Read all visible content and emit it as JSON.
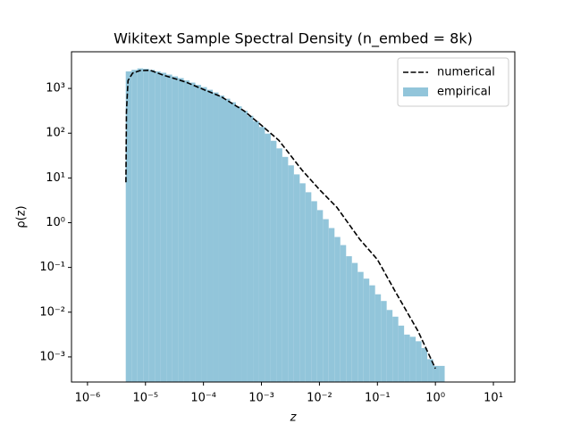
{
  "chart_data": {
    "type": "histogram",
    "title": "Wikitext Sample Spectral Density (n_embed = 8k)",
    "x_label": "z",
    "y_label": "ρ(z)",
    "xscale": "log",
    "yscale": "log",
    "xlim": [
      5.3e-07,
      23.4
    ],
    "ylim": [
      0.000275,
      6600
    ],
    "xticks": [
      {
        "value": 1e-06,
        "label": "10⁻⁶"
      },
      {
        "value": 1e-05,
        "label": "10⁻⁵"
      },
      {
        "value": 0.0001,
        "label": "10⁻⁴"
      },
      {
        "value": 0.001,
        "label": "10⁻³"
      },
      {
        "value": 0.01,
        "label": "10⁻²"
      },
      {
        "value": 0.1,
        "label": "10⁻¹"
      },
      {
        "value": 1,
        "label": "10⁰"
      },
      {
        "value": 10,
        "label": "10¹"
      }
    ],
    "yticks": [
      {
        "value": 0.001,
        "label": "10⁻³"
      },
      {
        "value": 0.01,
        "label": "10⁻²"
      },
      {
        "value": 0.1,
        "label": "10⁻¹"
      },
      {
        "value": 1,
        "label": "10⁰"
      },
      {
        "value": 10,
        "label": "10¹"
      },
      {
        "value": 100,
        "label": "10²"
      },
      {
        "value": 1000,
        "label": "10³"
      }
    ],
    "legend": "upper right",
    "series": [
      {
        "name": "numerical",
        "type": "line",
        "color": "#000000",
        "dashed": true,
        "x": [
          4.6e-06,
          4.7e-06,
          5e-06,
          6e-06,
          8e-06,
          1.2e-05,
          2e-05,
          5e-05,
          0.0001,
          0.0002,
          0.0005,
          0.001,
          0.002,
          0.005,
          0.01,
          0.02,
          0.05,
          0.1,
          0.2,
          0.5,
          1
        ],
        "values": [
          8,
          300,
          1500,
          2200,
          2500,
          2550,
          2000,
          1380,
          950,
          660,
          316,
          150,
          69,
          15,
          5.5,
          2.2,
          0.42,
          0.15,
          0.03,
          0.0038,
          0.00055
        ]
      },
      {
        "name": "empirical",
        "type": "histogram",
        "color": "#92c5da",
        "bins": [
          4.571e-06,
          5.754e-06,
          7.244e-06,
          9.12e-06,
          1.148e-05,
          1.445e-05,
          1.82e-05,
          2.291e-05,
          2.884e-05,
          3.631e-05,
          4.571e-05,
          5.754e-05,
          7.244e-05,
          9.12e-05,
          0.0001148,
          0.0001445,
          0.000182,
          0.0002291,
          0.0002884,
          0.0003631,
          0.0004571,
          0.0005754,
          0.0007244,
          0.000912,
          0.001148,
          0.001445,
          0.00182,
          0.002291,
          0.002884,
          0.003631,
          0.004571,
          0.005754,
          0.007244,
          0.00912,
          0.01148,
          0.01445,
          0.0182,
          0.02291,
          0.02884,
          0.03631,
          0.04571,
          0.05754,
          0.07244,
          0.0912,
          0.1148,
          0.1445,
          0.182,
          0.2291,
          0.2884,
          0.3631,
          0.4571,
          0.5754,
          0.7244,
          0.912,
          1.148,
          1.445
        ],
        "values": [
          2400,
          2600,
          2800,
          2750,
          2600,
          2400,
          2240,
          2040,
          1860,
          1700,
          1510,
          1350,
          1200,
          1070,
          933,
          813,
          692,
          589,
          490,
          398,
          316,
          245,
          186,
          138,
          97.7,
          67.6,
          45.7,
          29.5,
          19.1,
          12.0,
          7.59,
          4.79,
          3.02,
          1.91,
          1.2,
          0.759,
          0.479,
          0.316,
          0.178,
          0.126,
          0.0794,
          0.0562,
          0.0398,
          0.0251,
          0.0178,
          0.0112,
          0.00794,
          0.00501,
          0.00316,
          0.00282,
          0.00224,
          0.00158,
          0.000891,
          0.000631,
          0.000631
        ]
      }
    ]
  }
}
